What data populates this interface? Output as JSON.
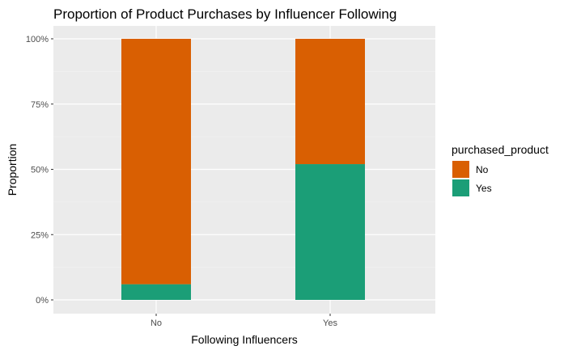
{
  "chart_data": {
    "type": "bar",
    "stacked": true,
    "title": "Proportion of Product Purchases by Influencer Following",
    "xlabel": "Following Influencers",
    "ylabel": "Proportion",
    "categories": [
      "No",
      "Yes"
    ],
    "ylim": [
      0,
      1
    ],
    "yticks": [
      0,
      0.25,
      0.5,
      0.75,
      1.0
    ],
    "ytick_labels": [
      "0%",
      "25%",
      "50%",
      "75%",
      "100%"
    ],
    "grid": true,
    "legend": {
      "title": "purchased_product",
      "position": "right",
      "entries": [
        "No",
        "Yes"
      ]
    },
    "series": [
      {
        "name": "Yes",
        "color": "#1b9e77",
        "values": [
          0.06,
          0.52
        ]
      },
      {
        "name": "No",
        "color": "#d95f02",
        "values": [
          0.94,
          0.48
        ]
      }
    ]
  }
}
